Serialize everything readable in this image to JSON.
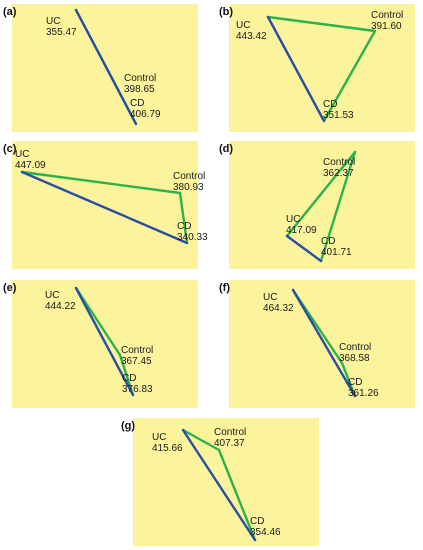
{
  "colors": {
    "background": "#fbf49c",
    "uc_cd_edges": "#2b4ea3",
    "control_edges": "#2bb24c"
  },
  "panels": [
    {
      "label": "(a)",
      "uc": {
        "name": "UC",
        "value": "355.47"
      },
      "control": {
        "name": "Control",
        "value": "398.65"
      },
      "cd": {
        "name": "CD",
        "value": "406.79"
      }
    },
    {
      "label": "(b)",
      "uc": {
        "name": "UC",
        "value": "443.42"
      },
      "control": {
        "name": "Control",
        "value": "391.60"
      },
      "cd": {
        "name": "CD",
        "value": "351.53"
      }
    },
    {
      "label": "(c)",
      "uc": {
        "name": "UC",
        "value": "447.09"
      },
      "control": {
        "name": "Control",
        "value": "380.93"
      },
      "cd": {
        "name": "CD",
        "value": "340.33"
      }
    },
    {
      "label": "(d)",
      "uc": {
        "name": "UC",
        "value": "417.09"
      },
      "control": {
        "name": "Control",
        "value": "362.37"
      },
      "cd": {
        "name": "CD",
        "value": "401.71"
      }
    },
    {
      "label": "(e)",
      "uc": {
        "name": "UC",
        "value": "444.22"
      },
      "control": {
        "name": "Control",
        "value": "367.45"
      },
      "cd": {
        "name": "CD",
        "value": "376.83"
      }
    },
    {
      "label": "(f)",
      "uc": {
        "name": "UC",
        "value": "464.32"
      },
      "control": {
        "name": "Control",
        "value": "368.58"
      },
      "cd": {
        "name": "CD",
        "value": "361.26"
      }
    },
    {
      "label": "(g)",
      "uc": {
        "name": "UC",
        "value": "415.66"
      },
      "control": {
        "name": "Control",
        "value": "407.37"
      },
      "cd": {
        "name": "CD",
        "value": "354.46"
      }
    }
  ]
}
